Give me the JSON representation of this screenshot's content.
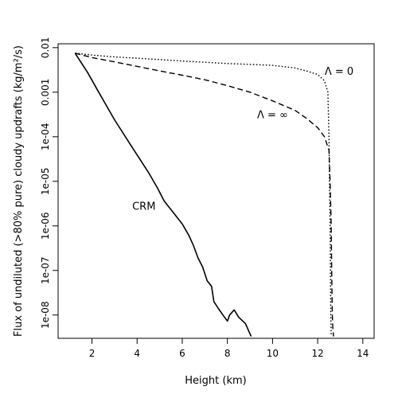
{
  "chart_data": {
    "type": "line",
    "title": "",
    "xlabel": "Height (km)",
    "ylabel": "Flux of undiluted (>80% pure) cloudy updrafts (kg/m²/s)",
    "xlim": [
      0.5,
      14.5
    ],
    "ylim": [
      3e-09,
      0.0122
    ],
    "y_scale": "log",
    "grid": false,
    "legend": "none",
    "x_ticks": [
      2,
      4,
      6,
      8,
      10,
      12,
      14
    ],
    "x_tick_labels": [
      "2",
      "4",
      "6",
      "8",
      "10",
      "12",
      "14"
    ],
    "y_ticks": [
      0.01,
      0.001,
      0.0001,
      1e-05,
      1e-06,
      1e-07,
      1e-08
    ],
    "y_tick_labels": [
      "0.01",
      "0.001",
      "1e-04",
      "1e-05",
      "1e-06",
      "1e-07",
      "1e-08"
    ],
    "series": [
      {
        "name": "CRM",
        "style": "solid",
        "x": [
          1.25,
          1.8,
          2.3,
          3.0,
          3.8,
          4.5,
          4.9,
          5.2,
          5.6,
          6.0,
          6.3,
          6.5,
          6.7,
          6.9,
          7.1,
          7.3,
          7.4,
          7.6,
          7.8,
          8.0,
          8.1,
          8.3,
          8.5,
          8.8,
          9.05
        ],
        "y": [
          0.0075,
          0.0028,
          0.001,
          0.00024,
          5.6e-05,
          1.6e-05,
          7.1e-06,
          3.6e-06,
          2e-06,
          1.1e-06,
          6e-07,
          3.6e-07,
          1.9e-07,
          1.2e-07,
          5.9e-08,
          4.4e-08,
          2e-08,
          1.4e-08,
          1e-08,
          7.3e-09,
          1e-08,
          1.3e-08,
          8.9e-09,
          6.4e-09,
          3.3e-09
        ]
      },
      {
        "name": "Λ = ∞",
        "style": "dashed",
        "x": [
          1.25,
          2.0,
          3.0,
          4.0,
          5.0,
          6.0,
          7.0,
          8.0,
          9.0,
          10.0,
          11.0,
          11.5,
          12.0,
          12.3,
          12.5,
          12.55,
          12.6,
          12.62,
          12.65,
          12.67,
          12.7
        ],
        "y": [
          0.0075,
          0.006,
          0.0048,
          0.0038,
          0.003,
          0.0024,
          0.0019,
          0.0014,
          0.001,
          0.00064,
          0.00039,
          0.00026,
          0.00016,
          0.0001,
          5e-05,
          1e-05,
          1e-06,
          1e-07,
          1e-08,
          5e-09,
          3.3e-09
        ]
      },
      {
        "name": "Λ = 0",
        "style": "dotted",
        "x": [
          1.25,
          2.0,
          3.0,
          4.0,
          5.0,
          6.0,
          7.0,
          8.0,
          9.0,
          10.0,
          11.0,
          11.5,
          12.0,
          12.3,
          12.45,
          12.5,
          12.52,
          12.55,
          12.58,
          12.6
        ],
        "y": [
          0.0075,
          0.0068,
          0.0062,
          0.0058,
          0.0054,
          0.005,
          0.0047,
          0.0044,
          0.0042,
          0.004,
          0.0035,
          0.003,
          0.0025,
          0.0018,
          0.001,
          0.0001,
          1e-05,
          1e-06,
          1e-08,
          3.3e-09
        ]
      }
    ],
    "annotations": [
      {
        "text": "CRM",
        "x": 4.3,
        "y": 2.8e-06
      },
      {
        "text": "Λ = ∞",
        "x": 10.0,
        "y": 0.00032
      },
      {
        "text": "Λ = 0",
        "x": 12.95,
        "y": 0.003
      }
    ]
  }
}
